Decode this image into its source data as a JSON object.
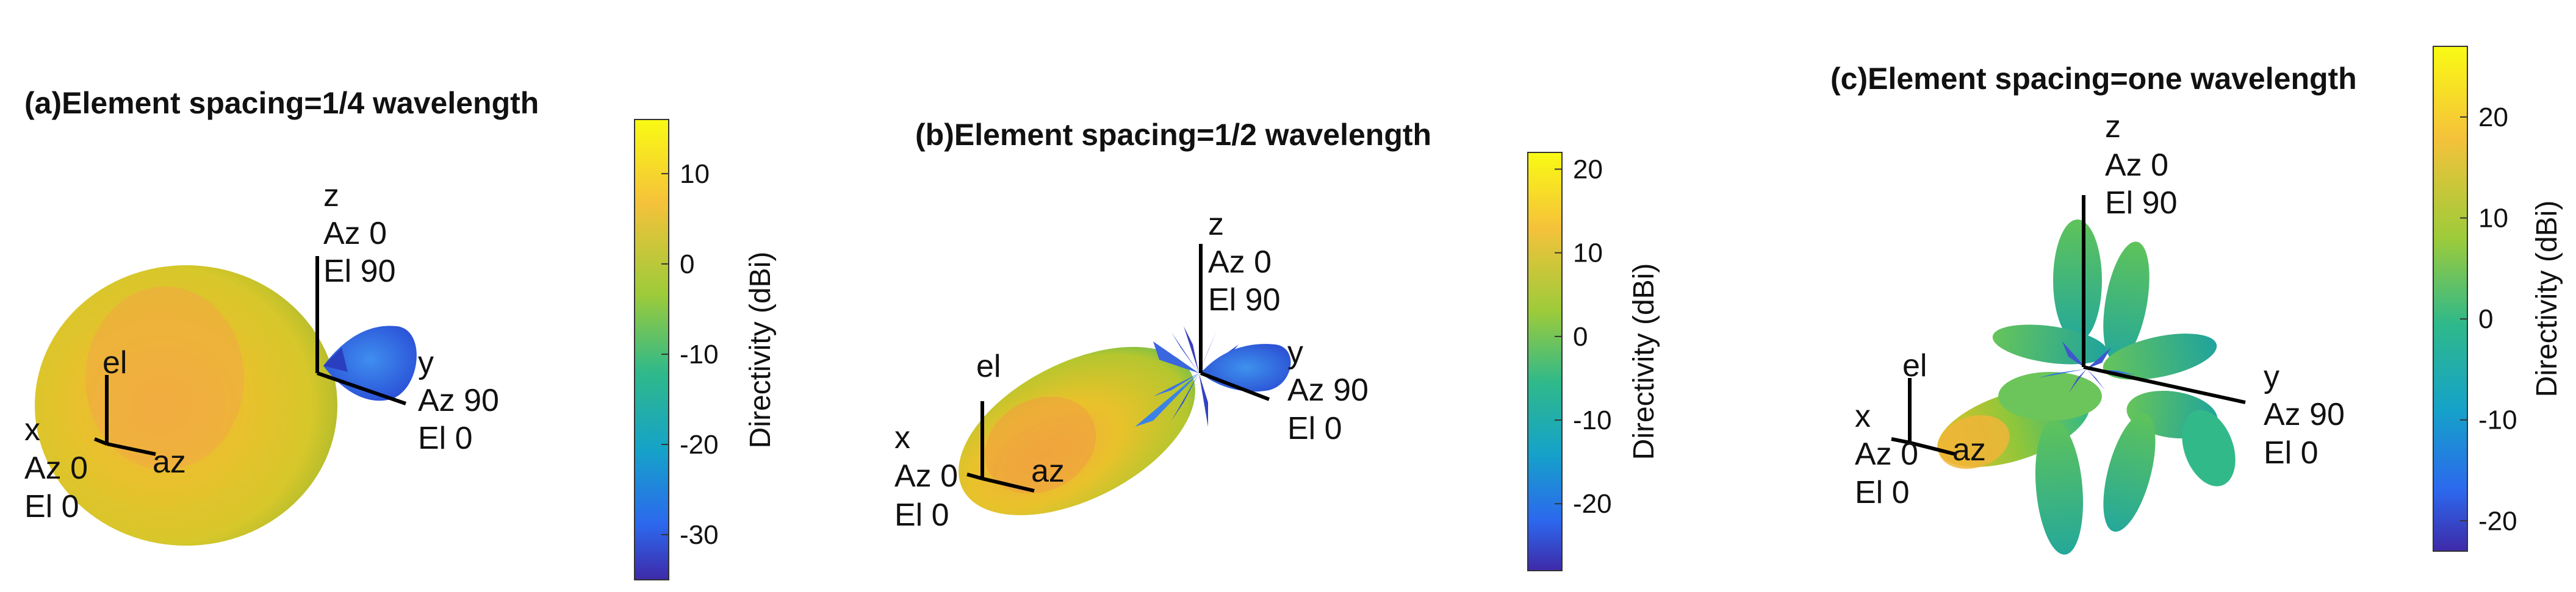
{
  "chart_data": [
    {
      "type": "3d-radiation-pattern",
      "title": "(a)Element spacing=1/4 wavelength",
      "axes": {
        "x": [
          "x",
          "Az 0",
          "El 0"
        ],
        "y": [
          "y",
          "Az 90",
          "El 0"
        ],
        "z": [
          "z",
          "Az 0",
          "El 90"
        ],
        "el": "el",
        "az": "az"
      },
      "colorbar": {
        "label": "Directivity (dBi)",
        "ticks": [
          10,
          0,
          -10,
          -20,
          -30
        ],
        "range": [
          -35,
          16
        ]
      }
    },
    {
      "type": "3d-radiation-pattern",
      "title": "(b)Element spacing=1/2 wavelength",
      "axes": {
        "x": [
          "x",
          "Az 0",
          "El 0"
        ],
        "y": [
          "y",
          "Az 90",
          "El 0"
        ],
        "z": [
          "z",
          "Az 0",
          "El 90"
        ],
        "el": "el",
        "az": "az"
      },
      "colorbar": {
        "label": "Directivity (dBi)",
        "ticks": [
          20,
          10,
          0,
          -10,
          -20
        ],
        "range": [
          -28,
          22
        ]
      }
    },
    {
      "type": "3d-radiation-pattern",
      "title": "(c)Element spacing=one wavelength",
      "axes": {
        "x": [
          "x",
          "Az 0",
          "El 0"
        ],
        "y": [
          "y",
          "Az 90",
          "El 0"
        ],
        "z": [
          "z",
          "Az 0",
          "El 90"
        ],
        "el": "el",
        "az": "az"
      },
      "colorbar": {
        "label": "Directivity (dBi)",
        "ticks": [
          20,
          10,
          0,
          -10,
          -20
        ],
        "range": [
          -23,
          27
        ]
      }
    }
  ],
  "colors": {
    "yellow": "#f5e61f",
    "orange": "#f0b83a",
    "green": "#2fb98a",
    "blue": "#2f6ee8",
    "purple": "#3f2aa8"
  }
}
